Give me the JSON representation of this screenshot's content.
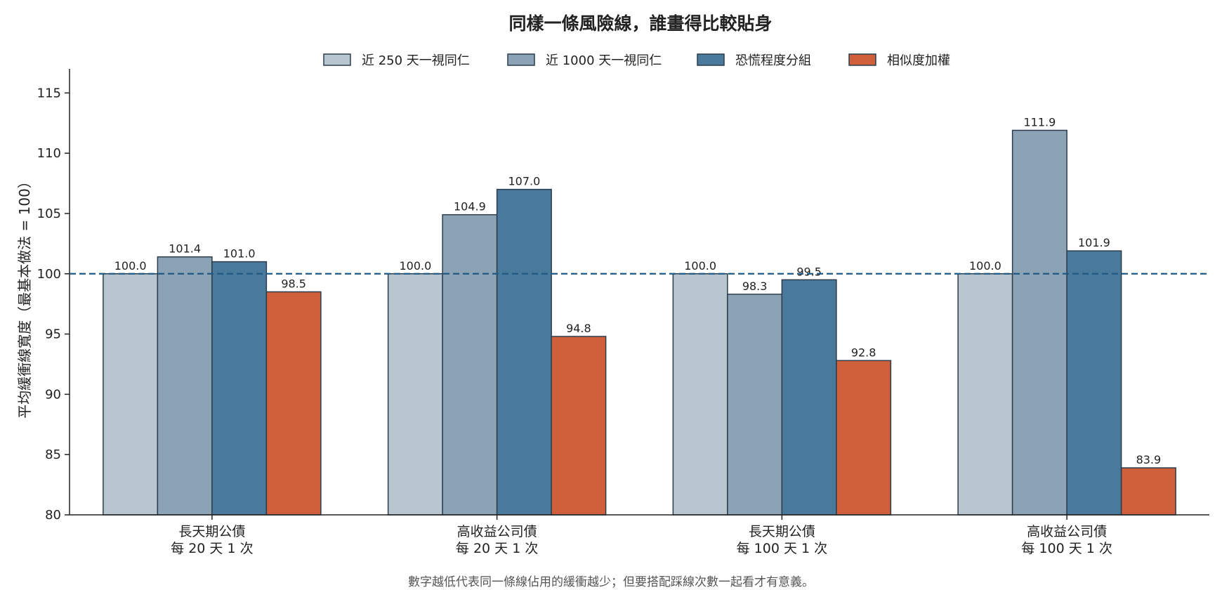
{
  "chart_data": {
    "type": "bar",
    "title": "同樣一條風險線，誰畫得比較貼身",
    "ylabel": "平均緩衝線寬度（最基本做法 = 100）",
    "xlabel": "",
    "ylim": [
      80,
      117
    ],
    "yticks": [
      80,
      85,
      90,
      95,
      100,
      105,
      110,
      115
    ],
    "reference_line": 100,
    "legend_position": "top-center",
    "grid": false,
    "categories": [
      [
        "長天期公債",
        "每 20 天 1 次"
      ],
      [
        "高收益公司債",
        "每 20 天 1 次"
      ],
      [
        "長天期公債",
        "每 100 天 1 次"
      ],
      [
        "高收益公司債",
        "每 100 天 1 次"
      ]
    ],
    "series": [
      {
        "name": "近 250 天一視同仁",
        "color": "#b8c6cf",
        "values": [
          100.0,
          100.0,
          100.0,
          100.0
        ]
      },
      {
        "name": "近 1000 天一視同仁",
        "color": "#8ba3b5",
        "values": [
          101.4,
          104.9,
          98.3,
          111.9
        ]
      },
      {
        "name": "恐慌程度分組",
        "color": "#4a7a9b",
        "values": [
          101.0,
          107.0,
          99.5,
          101.9
        ]
      },
      {
        "name": "相似度加權",
        "color": "#d0603b",
        "values": [
          98.5,
          94.8,
          92.8,
          83.9
        ]
      }
    ],
    "note": "數字越低代表同一條線佔用的緩衝越少；但要搭配踩線次數一起看才有意義。",
    "colors": {
      "reference_line": "#1f5a85",
      "bar_edge": "#2b3d4c",
      "axis": "#222222"
    }
  }
}
